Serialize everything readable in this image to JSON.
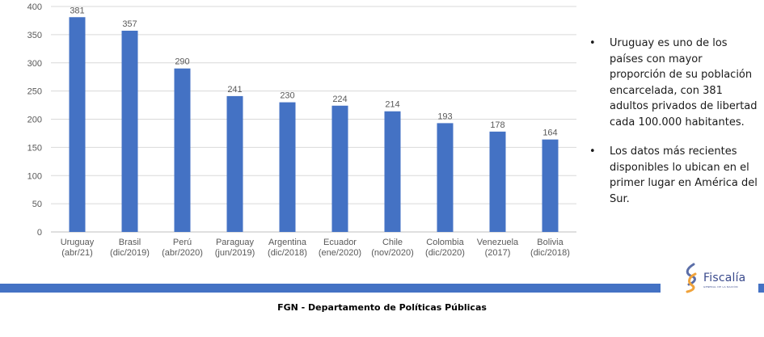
{
  "chart_data": {
    "type": "bar",
    "categories": [
      [
        "Uruguay",
        "(abr/21)"
      ],
      [
        "Brasil",
        "(dic/2019)"
      ],
      [
        "Perú",
        "(abr/2020)"
      ],
      [
        "Paraguay",
        "(jun/2019)"
      ],
      [
        "Argentina",
        "(dic/2018)"
      ],
      [
        "Ecuador",
        "(ene/2020)"
      ],
      [
        "Chile",
        "(nov/2020)"
      ],
      [
        "Colombia",
        "(dic/2020)"
      ],
      [
        "Venezuela",
        "(2017)"
      ],
      [
        "Bolivia",
        "(dic/2018)"
      ]
    ],
    "values": [
      381,
      357,
      290,
      241,
      230,
      224,
      214,
      193,
      178,
      164
    ],
    "data_labels": [
      "381",
      "357",
      "290",
      "241",
      "230",
      "224",
      "214",
      "193",
      "178",
      "164"
    ],
    "ylim": [
      0,
      400
    ],
    "yticks": [
      0,
      50,
      100,
      150,
      200,
      250,
      300,
      350,
      400
    ],
    "grid": true,
    "bar_color": "#4472c4"
  },
  "bullets": [
    {
      "marker": "•",
      "text": "Uruguay es uno de los países con mayor proporción de su población encarcelada, con 381 adultos privados de libertad cada 100.000 habitantes."
    },
    {
      "marker": "•",
      "text": "Los datos más recientes disponibles lo ubican en el primer lugar en América del Sur."
    }
  ],
  "logo": {
    "name": "Fiscalía",
    "tagline": "GENERAL DE LA NACIÓN",
    "icon": "fiscalia-swirl-icon"
  },
  "footer": {
    "text": "FGN - Departamento de Políticas Públicas"
  },
  "colors": {
    "band": "#4472c4",
    "logo": "#3a4a8c"
  }
}
